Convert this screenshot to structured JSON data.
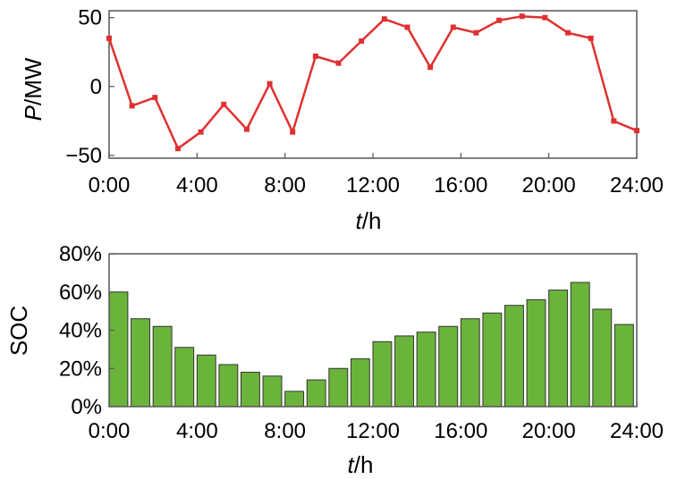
{
  "chart_data": [
    {
      "type": "line",
      "xlabel": {
        "var": "t",
        "unit": "/h"
      },
      "ylabel": {
        "var": "P",
        "unit": "/MW"
      },
      "x_ticks": [
        "0:00",
        "4:00",
        "8:00",
        "12:00",
        "16:00",
        "20:00",
        "24:00"
      ],
      "y_ticks": [
        "50",
        "0",
        "−50"
      ],
      "xlim": [
        0,
        23
      ],
      "ylim": [
        -52,
        55
      ],
      "line_color": "#e03030",
      "series": [
        {
          "x": [
            0,
            1,
            2,
            3,
            4,
            5,
            6,
            7,
            8,
            9,
            10,
            11,
            12,
            13,
            14,
            15,
            16,
            17,
            18,
            19,
            20,
            21,
            22,
            23
          ],
          "values": [
            35,
            -14,
            -8,
            -45,
            -33,
            -13,
            -31,
            2,
            -33,
            22,
            17,
            33,
            49,
            43,
            14,
            43,
            39,
            48,
            51,
            50,
            39,
            35,
            -25,
            -32
          ]
        }
      ]
    },
    {
      "type": "bar",
      "xlabel": {
        "var": "t",
        "unit": "/h"
      },
      "ylabel": "SOC",
      "x_ticks": [
        "0:00",
        "4:00",
        "8:00",
        "12:00",
        "16:00",
        "20:00",
        "24:00"
      ],
      "y_ticks": [
        "80%",
        "60%",
        "40%",
        "20%",
        "0%"
      ],
      "ylim": [
        0,
        80
      ],
      "bar_color": "#6bb43c",
      "series": [
        {
          "values": [
            60,
            46,
            42,
            31,
            27,
            22,
            18,
            16,
            8,
            14,
            20,
            25,
            34,
            37,
            39,
            42,
            46,
            49,
            53,
            56,
            61,
            65,
            51,
            43
          ]
        }
      ]
    }
  ]
}
